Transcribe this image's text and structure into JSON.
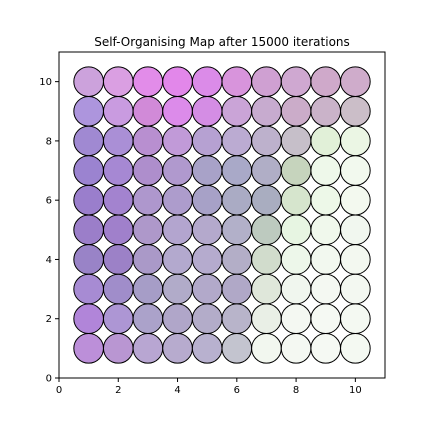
{
  "chart_data": {
    "type": "scatter",
    "title": "Self-Organising Map after 15000 iterations",
    "xlabel": "",
    "ylabel": "",
    "xlim": [
      0,
      11
    ],
    "ylim": [
      0,
      11
    ],
    "xticks": [
      0,
      2,
      4,
      6,
      8,
      10
    ],
    "yticks": [
      0,
      2,
      4,
      6,
      8,
      10
    ],
    "grid": false,
    "marker": "circle",
    "marker_edge_color": "#000000",
    "x": [
      1,
      2,
      3,
      4,
      5,
      6,
      7,
      8,
      9,
      10
    ],
    "y": [
      10,
      9,
      8,
      7,
      6,
      5,
      4,
      3,
      2,
      1
    ],
    "colors": [
      [
        "#cca2dc",
        "#da9fe2",
        "#e28ce9",
        "#e287ea",
        "#db8be8",
        "#d894dc",
        "#cfa0d2",
        "#cfa8d1",
        "#cfa9ca",
        "#cfaccb"
      ],
      [
        "#ad95dd",
        "#c99be0",
        "#d18ad8",
        "#dc8bea",
        "#d48de4",
        "#caa4d7",
        "#c7abcf",
        "#cbacc9",
        "#cab3c9",
        "#cbbec8"
      ],
      [
        "#a089d2",
        "#aa8fd6",
        "#b88fd0",
        "#c19ad8",
        "#b6a1d2",
        "#bbabd2",
        "#bdb1cc",
        "#c6bfc9",
        "#e1f0d8",
        "#ebf6e4"
      ],
      [
        "#9b83d0",
        "#a688d3",
        "#ae8ecc",
        "#b099ce",
        "#a8a2c8",
        "#a9a9c8",
        "#b0aec6",
        "#c6d4bd",
        "#eef8ea",
        "#f2f9ee"
      ],
      [
        "#9a7ecc",
        "#a383cf",
        "#ae97cd",
        "#ad9ccc",
        "#a7a1c7",
        "#aaabc4",
        "#a9adc0",
        "#d6e5cd",
        "#edf8e8",
        "#f3f9ef"
      ],
      [
        "#9b7ec9",
        "#a080cb",
        "#ae98ca",
        "#b3a5cf",
        "#b4a9cc",
        "#b2b0c9",
        "#bdcabf",
        "#e7f5e2",
        "#f0f8ec",
        "#f1f7ef"
      ],
      [
        "#9983c7",
        "#9c81c7",
        "#aa99c8",
        "#b3a9ce",
        "#b5abce",
        "#b3aec7",
        "#d1dccc",
        "#edf7ea",
        "#f2f8ef",
        "#f3f8f0"
      ],
      [
        "#a78bd3",
        "#a08dca",
        "#a69dc7",
        "#b1abc9",
        "#b2a9ca",
        "#b0a8c7",
        "#dfe7da",
        "#f0f6ee",
        "#f4f8f2",
        "#f3f8f1"
      ],
      [
        "#b185d9",
        "#ad96d4",
        "#aba2ca",
        "#b0a6c9",
        "#b3acc9",
        "#b8b4ca",
        "#e9efe6",
        "#f4f8f2",
        "#f5f9f3",
        "#f4f9f2"
      ],
      [
        "#bc8fd9",
        "#b996d2",
        "#b8a6d2",
        "#b7abce",
        "#b8b1cf",
        "#c3c4cf",
        "#f2f7ef",
        "#f4f8f2",
        "#f5f9f3",
        "#f4f9f2"
      ]
    ]
  }
}
